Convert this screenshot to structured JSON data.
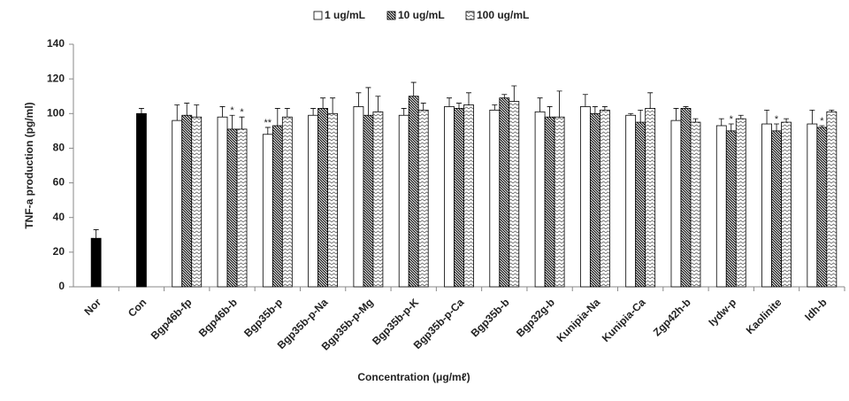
{
  "chart_data": {
    "type": "bar",
    "x_label": "Concentration  (μg/mℓ)",
    "y_label": "TNF-a production  (pg/ml)",
    "categories": [
      "Nor",
      "Con",
      "Bgp46b-fp",
      "Bgp46b-b",
      "Bgp35b-p",
      "Bgp35b-p-Na",
      "Bgp35b-p-Mg",
      "Bgp35b-p-K",
      "Bgp35b-p-Ca",
      "Bgp35b-b",
      "Bgp32g-b",
      "Kunipia-Na",
      "Kunipia-Ca",
      "Zgp42h-b",
      "Iydw-p",
      "Kaolinite",
      "Idh-b"
    ],
    "series": [
      {
        "color": "#000000",
        "hatch": "solid",
        "values": [
          28,
          100,
          null,
          null,
          null,
          null,
          null,
          null,
          null,
          null,
          null,
          null,
          null,
          null,
          null,
          null,
          null
        ],
        "errors": [
          5,
          3,
          null,
          null,
          null,
          null,
          null,
          null,
          null,
          null,
          null,
          null,
          null,
          null,
          null,
          null,
          null
        ]
      },
      {
        "name": "1 ug/mL",
        "color": "#ffffff",
        "hatch": "solid",
        "values": [
          null,
          null,
          96,
          98,
          88,
          99,
          104,
          99,
          104,
          102,
          101,
          104,
          99,
          96,
          93,
          94,
          94
        ],
        "errors": [
          null,
          null,
          9,
          6,
          4,
          4,
          8,
          4,
          5,
          3,
          8,
          7,
          1,
          7,
          4,
          8,
          8
        ],
        "significance": [
          null,
          null,
          null,
          null,
          "**",
          null,
          null,
          null,
          null,
          null,
          null,
          null,
          null,
          null,
          null,
          null,
          null
        ]
      },
      {
        "name": "10 ug/mL",
        "color": "#000000",
        "hatch": "backslash",
        "values": [
          null,
          null,
          99,
          91,
          93,
          103,
          99,
          110,
          103,
          109,
          98,
          100,
          95,
          103,
          90,
          90,
          92
        ],
        "errors": [
          null,
          null,
          7,
          8,
          10,
          6,
          16,
          8,
          3,
          2,
          6,
          4,
          7,
          1,
          4,
          4,
          1
        ],
        "significance": [
          null,
          null,
          null,
          "*",
          null,
          null,
          null,
          null,
          null,
          null,
          null,
          null,
          null,
          null,
          "*",
          "*",
          "*"
        ]
      },
      {
        "name": "100 ug/mL",
        "color": "#000000",
        "hatch": "zigzag",
        "values": [
          null,
          null,
          98,
          91,
          98,
          100,
          101,
          102,
          105,
          107,
          98,
          102,
          103,
          95,
          97,
          95,
          101
        ],
        "errors": [
          null,
          null,
          7,
          7,
          5,
          9,
          9,
          4,
          7,
          9,
          15,
          2,
          9,
          2,
          2,
          2,
          1
        ],
        "significance": [
          null,
          null,
          null,
          "*",
          null,
          null,
          null,
          null,
          null,
          null,
          null,
          null,
          null,
          null,
          null,
          null,
          null
        ]
      }
    ],
    "ylim": [
      0,
      140
    ],
    "yticks": [
      0,
      20,
      40,
      60,
      80,
      100,
      120,
      140
    ],
    "grid": false,
    "legend": "top"
  }
}
